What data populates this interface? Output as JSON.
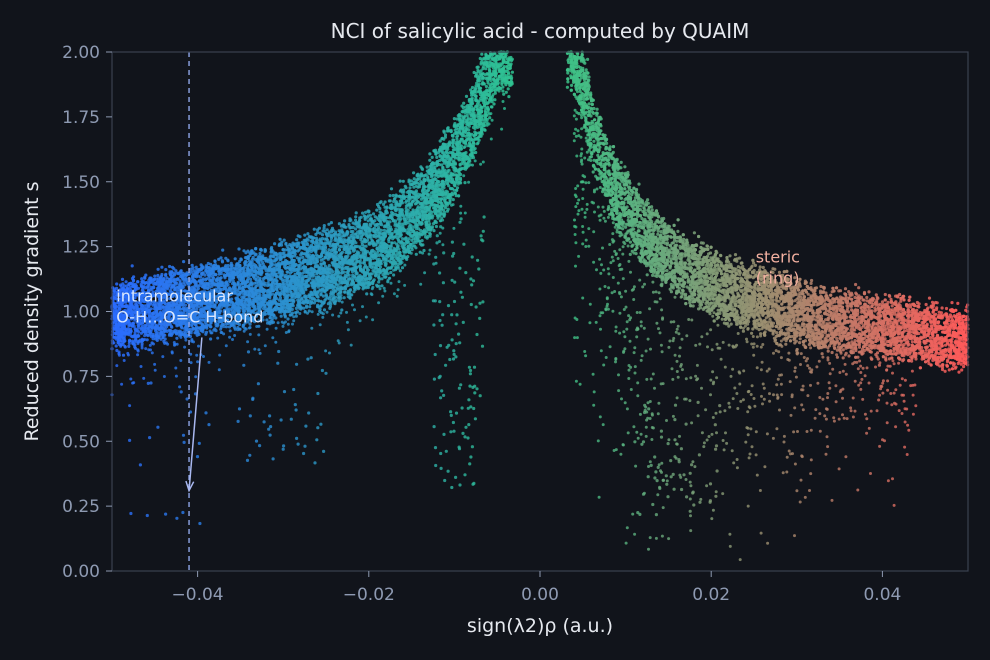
{
  "chart_data": {
    "type": "scatter",
    "title": "NCI of salicylic acid - computed by QUAIM",
    "xlabel": "sign(λ2)ρ  (a.u.)",
    "ylabel": "Reduced density gradient  s",
    "xlim": [
      -0.05,
      0.05
    ],
    "ylim": [
      0.0,
      2.0
    ],
    "x_ticks": [
      -0.04,
      -0.02,
      0.0,
      0.02,
      0.04
    ],
    "x_tick_labels": [
      "−0.04",
      "−0.02",
      "0.00",
      "0.02",
      "0.04"
    ],
    "y_ticks": [
      0.0,
      0.25,
      0.5,
      0.75,
      1.0,
      1.25,
      1.5,
      1.75,
      2.0
    ],
    "y_tick_labels": [
      "0.00",
      "0.25",
      "0.50",
      "0.75",
      "1.00",
      "1.25",
      "1.50",
      "1.75",
      "2.00"
    ],
    "grid": false,
    "colormap": [
      "#2a6bff",
      "#2fc98a",
      "#ff5a5a"
    ],
    "reference_line": {
      "x": -0.041,
      "style": "dashed",
      "color": "#8fa6e8"
    },
    "annotations": [
      {
        "lines": [
          "intramolecular",
          "O-H…O=C  H-bond"
        ],
        "x": -0.0495,
        "y": 1.0,
        "arrow_to": [
          -0.041,
          0.31
        ],
        "color": "#dbe8ff"
      },
      {
        "lines": [
          "steric",
          "(ring)"
        ],
        "x": 0.0252,
        "y": 1.15,
        "color": "#f2b0a0"
      }
    ],
    "series": [
      {
        "description_points": "Approximate sample along the visible attractive (negative) branch, repulsive (positive) branch and the scattered low-s spikes.",
        "x": [
          -0.05,
          -0.048,
          -0.046,
          -0.044,
          -0.042,
          -0.04,
          -0.038,
          -0.036,
          -0.034,
          -0.032,
          -0.03,
          -0.028,
          -0.026,
          -0.024,
          -0.022,
          -0.02,
          -0.018,
          -0.016,
          -0.014,
          -0.012,
          -0.01,
          -0.008,
          -0.006,
          -0.005,
          -0.004,
          -0.0035,
          0.0035,
          0.004,
          0.005,
          0.006,
          0.008,
          0.01,
          0.012,
          0.014,
          0.016,
          0.018,
          0.02,
          0.022,
          0.024,
          0.026,
          0.028,
          0.03,
          0.032,
          0.034,
          0.036,
          0.038,
          0.04,
          0.042,
          0.044,
          0.046,
          0.048,
          0.05
        ],
        "y": [
          0.98,
          1.0,
          1.01,
          1.02,
          1.03,
          1.04,
          1.06,
          1.07,
          1.09,
          1.1,
          1.12,
          1.14,
          1.16,
          1.18,
          1.21,
          1.24,
          1.28,
          1.33,
          1.4,
          1.48,
          1.58,
          1.72,
          1.9,
          2.0,
          2.0,
          2.0,
          2.0,
          2.0,
          1.88,
          1.72,
          1.52,
          1.4,
          1.31,
          1.24,
          1.19,
          1.15,
          1.11,
          1.08,
          1.06,
          1.04,
          1.02,
          1.0,
          0.98,
          0.97,
          0.96,
          0.95,
          0.94,
          0.93,
          0.92,
          0.91,
          0.9,
          0.89
        ]
      }
    ]
  }
}
